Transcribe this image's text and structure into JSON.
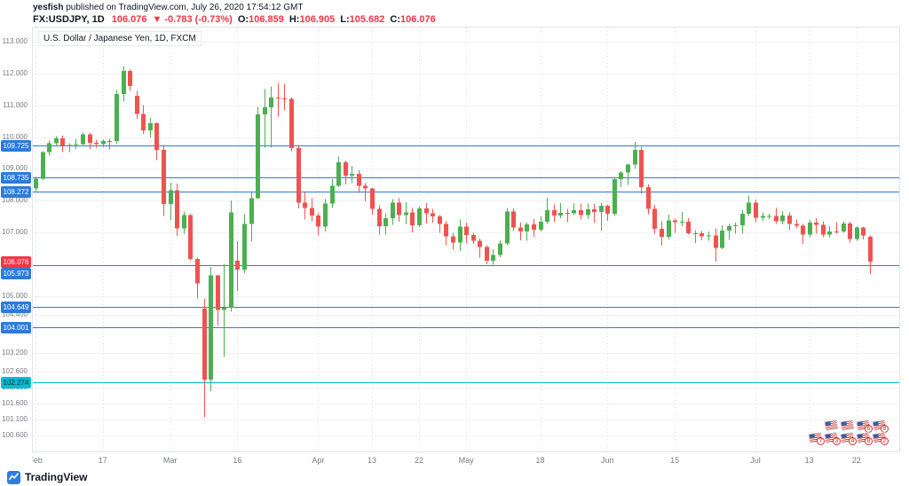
{
  "header": {
    "publisher": "yesfish",
    "published_suffix": " published on TradingView.com, July 26, 2020 17:54:12 GMT",
    "symbol": "FX:USDJPY, 1D",
    "last_price": "106.076",
    "change": "▼ -0.783 (-0.73%)",
    "o_label": "O:",
    "o_value": "106.859",
    "h_label": "H:",
    "h_value": "106.905",
    "l_label": "L:",
    "l_value": "105.682",
    "c_label": "C:",
    "c_value": "106.076"
  },
  "footer": {
    "brand": "TradingView"
  },
  "stickers": {
    "rows": [
      [
        "",
        "",
        "6",
        "8"
      ],
      [
        "7",
        "3",
        "4",
        "8",
        "2"
      ]
    ]
  },
  "colors": {
    "up": "#4caf50",
    "down": "#ef5350",
    "level_blue": "#2e7bd9",
    "level_cyan": "#00bcd4",
    "last_price_red": "#f23645",
    "axis_text": "#787b86",
    "grid": "#eef1f5",
    "grid_v": "#d9dde5"
  },
  "chart_data": {
    "type": "candlestick",
    "title": "U.S. Dollar / Japanese Yen, 1D, FXCM",
    "symbol": "USDJPY",
    "exchange": "FXCM",
    "interval": "1D",
    "ylim": [
      100.1,
      113.45
    ],
    "grid": true,
    "y_axis_ticks": [
      "113.000",
      "112.000",
      "111.000",
      "110.000",
      "109.000",
      "108.000",
      "107.000",
      "105.000",
      "104.400",
      "103.200",
      "102.600",
      "102.100",
      "101.600",
      "101.100",
      "100.600"
    ],
    "x_axis_ticks": [
      {
        "label": "Feb",
        "index": 0
      },
      {
        "label": "17",
        "index": 10
      },
      {
        "label": "Mar",
        "index": 20
      },
      {
        "label": "16",
        "index": 30
      },
      {
        "label": "Apr",
        "index": 42
      },
      {
        "label": "13",
        "index": 50
      },
      {
        "label": "22",
        "index": 57
      },
      {
        "label": "May",
        "index": 64
      },
      {
        "label": "18",
        "index": 75
      },
      {
        "label": "Jun",
        "index": 85
      },
      {
        "label": "15",
        "index": 95
      },
      {
        "label": "Jul",
        "index": 107
      },
      {
        "label": "13",
        "index": 115
      },
      {
        "label": "22",
        "index": 122
      }
    ],
    "levels": [
      {
        "price": 109.725,
        "label": "109.725",
        "color": "blue"
      },
      {
        "price": 108.735,
        "label": "108.735",
        "color": "blue"
      },
      {
        "price": 108.272,
        "label": "108.272",
        "color": "blue"
      },
      {
        "price": 105.973,
        "label": "105.973",
        "color": "blue"
      },
      {
        "price": 104.649,
        "label": "104.649",
        "color": "blue"
      },
      {
        "price": 104.001,
        "label": "104.001",
        "color": "blue"
      },
      {
        "price": 102.274,
        "label": "102.274",
        "color": "cyan"
      }
    ],
    "last_price": {
      "price": 106.076,
      "label": "106.076",
      "color": "red"
    },
    "candles": [
      [
        "Feb 3",
        108.38,
        108.74,
        108.3,
        108.69
      ],
      [
        "Feb 4",
        108.69,
        109.55,
        108.65,
        109.52
      ],
      [
        "Feb 5",
        109.52,
        109.89,
        109.41,
        109.81
      ],
      [
        "Feb 6",
        109.81,
        110.03,
        109.72,
        109.96
      ],
      [
        "Feb 7",
        109.96,
        110.04,
        109.53,
        109.74
      ],
      [
        "Feb 10",
        109.74,
        109.8,
        109.53,
        109.75
      ],
      [
        "Feb 11",
        109.75,
        109.94,
        109.63,
        109.78
      ],
      [
        "Feb 12",
        109.78,
        110.14,
        109.72,
        110.08
      ],
      [
        "Feb 13",
        110.08,
        110.13,
        109.62,
        109.82
      ],
      [
        "Feb 14",
        109.82,
        109.92,
        109.67,
        109.78
      ],
      [
        "Feb 17",
        109.78,
        109.92,
        109.68,
        109.88
      ],
      [
        "Feb 18",
        109.88,
        109.95,
        109.61,
        109.87
      ],
      [
        "Feb 19",
        109.87,
        111.48,
        109.78,
        111.35
      ],
      [
        "Feb 20",
        111.35,
        112.22,
        111.12,
        112.08
      ],
      [
        "Feb 21",
        112.08,
        112.12,
        111.46,
        111.6
      ],
      [
        "Feb 24",
        111.3,
        111.45,
        110.58,
        110.72
      ],
      [
        "Feb 25",
        110.72,
        111.0,
        110.1,
        110.21
      ],
      [
        "Feb 26",
        110.21,
        110.6,
        109.98,
        110.44
      ],
      [
        "Feb 27",
        110.44,
        110.48,
        109.28,
        109.59
      ],
      [
        "Feb 28",
        109.59,
        109.71,
        107.51,
        107.89
      ],
      [
        "Mar 2",
        107.89,
        108.56,
        107.38,
        108.33
      ],
      [
        "Mar 3",
        108.33,
        108.53,
        106.88,
        107.13
      ],
      [
        "Mar 4",
        107.13,
        107.65,
        106.95,
        107.54
      ],
      [
        "Mar 5",
        107.54,
        107.57,
        106.12,
        106.16
      ],
      [
        "Mar 6",
        106.16,
        106.2,
        104.92,
        105.39
      ],
      [
        "Mar 9",
        104.6,
        104.9,
        101.18,
        102.36
      ],
      [
        "Mar 10",
        102.36,
        105.91,
        102.0,
        105.64
      ],
      [
        "Mar 11",
        105.64,
        105.66,
        104.07,
        104.55
      ],
      [
        "Mar 12",
        104.55,
        106.0,
        103.08,
        104.63
      ],
      [
        "Mar 13",
        104.63,
        108.01,
        104.5,
        107.63
      ],
      [
        "Mar 16",
        106.1,
        106.72,
        105.15,
        105.82
      ],
      [
        "Mar 17",
        105.82,
        107.57,
        105.72,
        107.26
      ],
      [
        "Mar 18",
        107.26,
        108.27,
        106.72,
        108.08
      ],
      [
        "Mar 19",
        108.08,
        110.95,
        108.05,
        110.71
      ],
      [
        "Mar 20",
        110.71,
        111.51,
        109.66,
        110.93
      ],
      [
        "Mar 23",
        110.93,
        111.59,
        109.67,
        111.25
      ],
      [
        "Mar 24",
        111.25,
        111.71,
        110.64,
        111.22
      ],
      [
        "Mar 25",
        111.22,
        111.68,
        110.85,
        111.2
      ],
      [
        "Mar 26",
        111.2,
        111.25,
        109.55,
        109.65
      ],
      [
        "Mar 27",
        109.65,
        109.75,
        107.75,
        107.94
      ],
      [
        "Mar 30",
        107.94,
        108.25,
        107.41,
        107.76
      ],
      [
        "Mar 31",
        107.76,
        108.08,
        107.35,
        107.53
      ],
      [
        "Apr 1",
        107.53,
        107.6,
        106.9,
        107.18
      ],
      [
        "Apr 2",
        107.18,
        108.05,
        107.02,
        107.9
      ],
      [
        "Apr 3",
        107.9,
        108.67,
        107.77,
        108.47
      ],
      [
        "Apr 6",
        108.47,
        109.38,
        108.42,
        109.21
      ],
      [
        "Apr 7",
        109.21,
        109.26,
        108.5,
        108.79
      ],
      [
        "Apr 8",
        108.79,
        109.1,
        108.55,
        108.84
      ],
      [
        "Apr 9",
        108.84,
        108.95,
        108.24,
        108.47
      ],
      [
        "Apr 10",
        108.47,
        108.55,
        107.98,
        108.38
      ],
      [
        "Apr 13",
        108.38,
        108.4,
        107.56,
        107.74
      ],
      [
        "Apr 14",
        107.74,
        107.85,
        106.93,
        107.19
      ],
      [
        "Apr 15",
        107.19,
        107.6,
        106.93,
        107.45
      ],
      [
        "Apr 16",
        107.45,
        108.05,
        107.23,
        107.93
      ],
      [
        "Apr 17",
        107.93,
        108.08,
        107.34,
        107.54
      ],
      [
        "Apr 20",
        107.54,
        107.95,
        107.27,
        107.63
      ],
      [
        "Apr 21",
        107.63,
        107.77,
        107.0,
        107.22
      ],
      [
        "Apr 22",
        107.22,
        107.81,
        107.17,
        107.75
      ],
      [
        "Apr 23",
        107.75,
        107.92,
        107.28,
        107.6
      ],
      [
        "Apr 24",
        107.6,
        107.74,
        107.31,
        107.5
      ],
      [
        "Apr 27",
        107.5,
        107.55,
        106.99,
        107.27
      ],
      [
        "Apr 28",
        107.27,
        107.35,
        106.6,
        106.87
      ],
      [
        "Apr 29",
        106.87,
        106.98,
        106.45,
        106.68
      ],
      [
        "Apr 30",
        106.68,
        107.41,
        106.41,
        107.18
      ],
      [
        "May 1",
        107.18,
        107.3,
        106.65,
        106.91
      ],
      [
        "May 4",
        106.91,
        106.98,
        106.63,
        106.74
      ],
      [
        "May 5",
        106.74,
        106.8,
        106.2,
        106.54
      ],
      [
        "May 6",
        106.54,
        106.6,
        105.99,
        106.11
      ],
      [
        "May 7",
        106.11,
        106.45,
        105.98,
        106.28
      ],
      [
        "May 8",
        106.28,
        106.75,
        106.22,
        106.65
      ],
      [
        "May 11",
        106.65,
        107.77,
        106.6,
        107.65
      ],
      [
        "May 12",
        107.65,
        107.75,
        107.04,
        107.15
      ],
      [
        "May 13",
        107.15,
        107.3,
        106.75,
        107.03
      ],
      [
        "May 14",
        107.03,
        107.3,
        106.74,
        107.25
      ],
      [
        "May 15",
        107.25,
        107.42,
        106.86,
        107.08
      ],
      [
        "May 18",
        107.08,
        107.5,
        107.03,
        107.33
      ],
      [
        "May 19",
        107.33,
        108.09,
        107.27,
        107.7
      ],
      [
        "May 20",
        107.7,
        107.88,
        107.32,
        107.53
      ],
      [
        "May 21",
        107.53,
        107.92,
        107.45,
        107.61
      ],
      [
        "May 22",
        107.61,
        107.74,
        107.32,
        107.6
      ],
      [
        "May 25",
        107.6,
        107.92,
        107.55,
        107.69
      ],
      [
        "May 26",
        107.69,
        107.9,
        107.4,
        107.54
      ],
      [
        "May 27",
        107.54,
        107.91,
        107.42,
        107.72
      ],
      [
        "May 28",
        107.72,
        107.89,
        107.3,
        107.64
      ],
      [
        "May 29",
        107.64,
        107.92,
        107.06,
        107.83
      ],
      [
        "Jun 1",
        107.83,
        107.87,
        107.36,
        107.59
      ],
      [
        "Jun 2",
        107.59,
        108.73,
        107.52,
        108.68
      ],
      [
        "Jun 3",
        108.68,
        108.93,
        108.42,
        108.89
      ],
      [
        "Jun 4",
        108.89,
        109.16,
        108.49,
        109.14
      ],
      [
        "Jun 5",
        109.14,
        109.85,
        109.01,
        109.59
      ],
      [
        "Jun 8",
        109.59,
        109.69,
        108.23,
        108.42
      ],
      [
        "Jun 9",
        108.42,
        108.51,
        107.57,
        107.74
      ],
      [
        "Jun 10",
        107.74,
        107.87,
        106.95,
        107.11
      ],
      [
        "Jun 11",
        107.11,
        107.35,
        106.58,
        106.86
      ],
      [
        "Jun 12",
        106.86,
        107.56,
        106.77,
        107.38
      ],
      [
        "Jun 15",
        107.38,
        107.43,
        106.99,
        107.32
      ],
      [
        "Jun 16",
        107.32,
        107.64,
        107.2,
        107.34
      ],
      [
        "Jun 17",
        107.34,
        107.44,
        106.93,
        106.97
      ],
      [
        "Jun 18",
        106.97,
        107.07,
        106.66,
        106.97
      ],
      [
        "Jun 19",
        106.97,
        107.04,
        106.75,
        106.87
      ],
      [
        "Jun 22",
        106.87,
        107.03,
        106.73,
        106.9
      ],
      [
        "Jun 23",
        106.9,
        107.13,
        106.07,
        106.51
      ],
      [
        "Jun 24",
        106.51,
        107.22,
        106.47,
        107.05
      ],
      [
        "Jun 25",
        107.05,
        107.27,
        106.76,
        107.19
      ],
      [
        "Jun 26",
        107.19,
        107.3,
        106.95,
        107.22
      ],
      [
        "Jun 29",
        107.22,
        107.69,
        106.95,
        107.58
      ],
      [
        "Jun 30",
        107.58,
        108.16,
        107.51,
        107.93
      ],
      [
        "Jul 1",
        107.93,
        108.03,
        107.32,
        107.46
      ],
      [
        "Jul 2",
        107.46,
        107.63,
        107.36,
        107.51
      ],
      [
        "Jul 3",
        107.51,
        107.59,
        107.42,
        107.51
      ],
      [
        "Jul 6",
        107.51,
        107.76,
        107.26,
        107.35
      ],
      [
        "Jul 7",
        107.35,
        107.67,
        107.25,
        107.53
      ],
      [
        "Jul 8",
        107.53,
        107.62,
        107.07,
        107.26
      ],
      [
        "Jul 9",
        107.26,
        107.4,
        107.12,
        107.21
      ],
      [
        "Jul 10",
        107.21,
        107.27,
        106.64,
        106.93
      ],
      [
        "Jul 13",
        106.93,
        107.39,
        106.85,
        107.3
      ],
      [
        "Jul 14",
        107.3,
        107.44,
        106.95,
        107.23
      ],
      [
        "Jul 15",
        107.23,
        107.35,
        106.85,
        106.93
      ],
      [
        "Jul 16",
        106.93,
        107.19,
        106.85,
        107.03
      ],
      [
        "Jul 17",
        107.03,
        107.3,
        106.96,
        107.02
      ],
      [
        "Jul 20",
        107.02,
        107.35,
        106.98,
        107.28
      ],
      [
        "Jul 21",
        107.28,
        107.33,
        106.68,
        106.79
      ],
      [
        "Jul 22",
        106.79,
        107.2,
        106.73,
        107.15
      ],
      [
        "Jul 23",
        107.15,
        107.18,
        106.78,
        106.9
      ],
      [
        "Jul 24",
        106.859,
        106.905,
        105.682,
        106.076
      ]
    ]
  }
}
